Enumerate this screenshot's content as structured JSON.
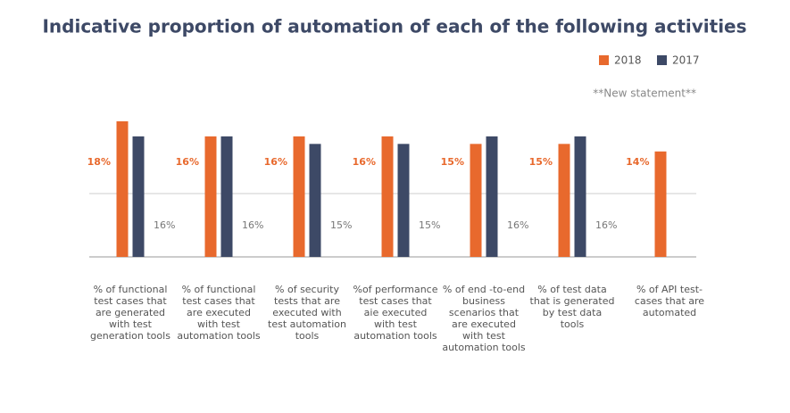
{
  "chart_data": {
    "type": "bar",
    "title": "Indicative proportion of automation of each of the following activities",
    "annotation": "**New statement**",
    "categories": [
      "% of functional test cases that are generated with test generation tools",
      "% of functional test cases that are executed with test automation tools",
      "% of security tests that are executed with test automation tools",
      "%of performance test cases that aie executed with test automation tools",
      "% of end -to-end business scenarios that are executed with test automation tools",
      "% of test data that is generated by test data tools",
      "% of API test-cases that are automated"
    ],
    "series": [
      {
        "name": "2018",
        "color": "#e8692d",
        "values": [
          18,
          16,
          16,
          16,
          15,
          15,
          14
        ],
        "value_labels": [
          "18%",
          "16%",
          "16%",
          "16%",
          "15%",
          "15%",
          "14%"
        ]
      },
      {
        "name": "2017",
        "color": "#3d4966",
        "values": [
          16,
          16,
          15,
          15,
          16,
          16,
          null
        ],
        "value_labels": [
          "16%",
          "16%",
          "15%",
          "15%",
          "16%",
          "16%",
          null
        ]
      }
    ],
    "ylim": [
      0,
      18
    ],
    "legend": "top-right"
  }
}
